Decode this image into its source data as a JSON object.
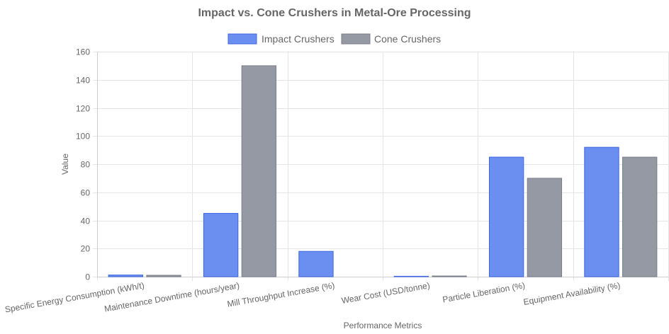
{
  "chart_data": {
    "type": "bar",
    "title": "Impact vs. Cone Crushers in Metal-Ore Processing",
    "xlabel": "Performance Metrics",
    "ylabel": "Value",
    "ylim": [
      0,
      160
    ],
    "yticks": [
      0,
      20,
      40,
      60,
      80,
      100,
      120,
      140,
      160
    ],
    "grid": true,
    "legend_position": "top-center",
    "categories": [
      "Specific Energy Consumption (kWh/t)",
      "Maintenance Downtime (hours/year)",
      "Mill Throughput Increase (%)",
      "Wear Cost (USD/tonne)",
      "Particle Liberation (%)",
      "Equipment Availability (%)"
    ],
    "series": [
      {
        "name": "Impact Crushers",
        "color": "#6a8ff0",
        "border_color": "#3d67e0",
        "values": [
          1.2,
          45,
          18,
          0.3,
          85,
          92
        ]
      },
      {
        "name": "Cone Crushers",
        "color": "#9499a4",
        "border_color": "#7a7f8a",
        "values": [
          1.0,
          150,
          0,
          0.5,
          70,
          85
        ]
      }
    ]
  }
}
